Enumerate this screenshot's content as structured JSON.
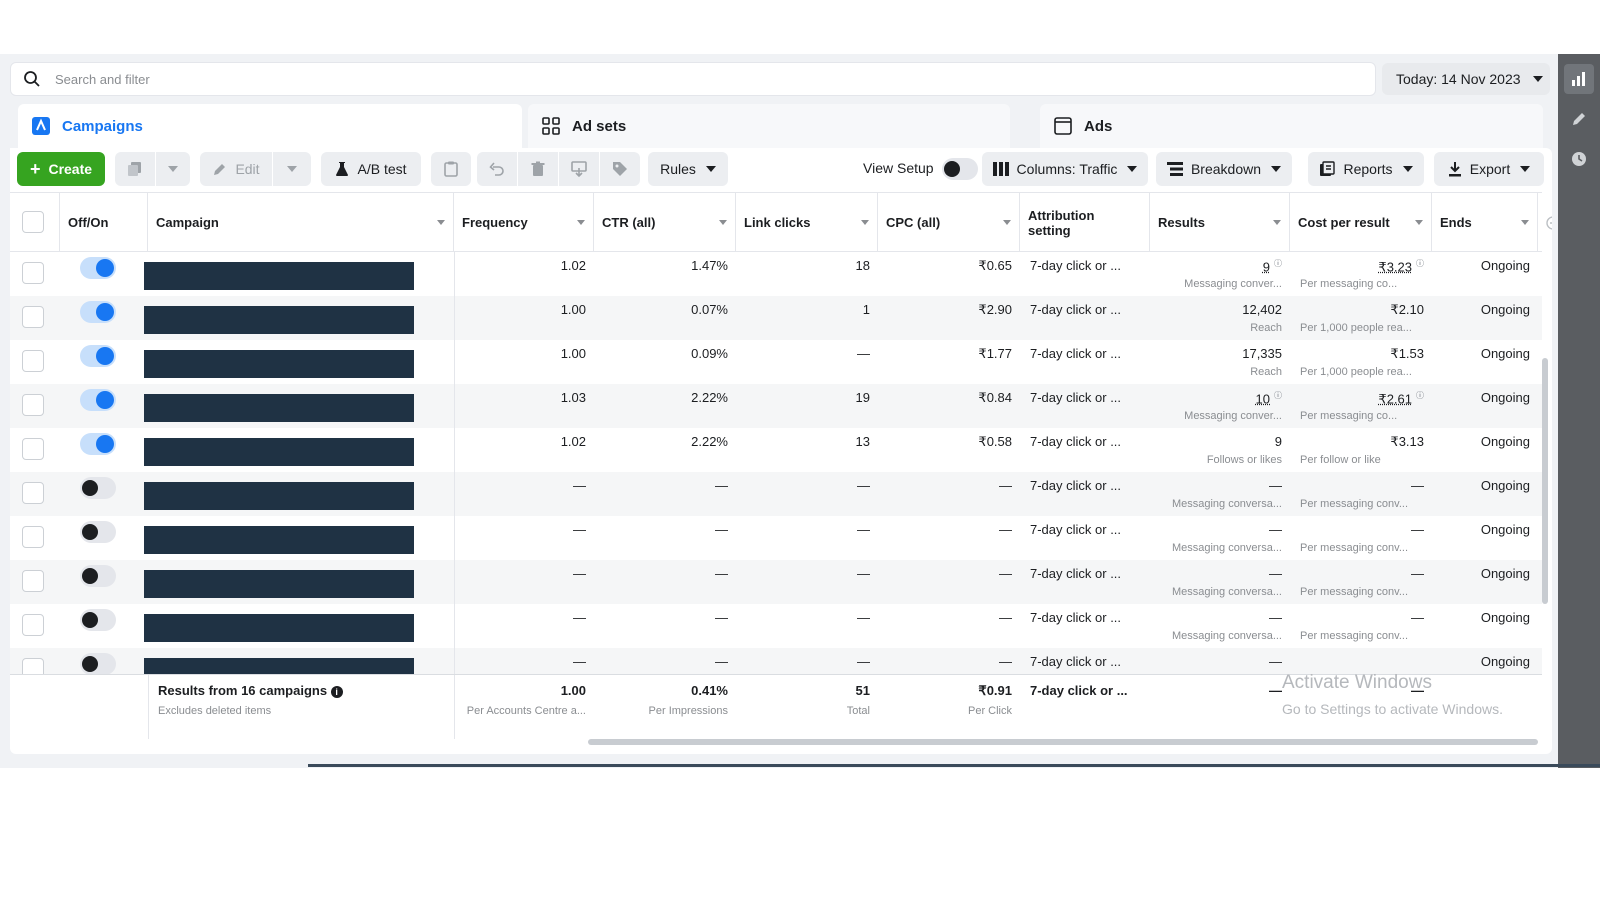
{
  "search": {
    "placeholder": "Search and filter"
  },
  "date_picker": {
    "label": "Today: 14 Nov 2023"
  },
  "tabs": [
    {
      "label": "Campaigns",
      "icon": "campaign-icon"
    },
    {
      "label": "Ad sets",
      "icon": "grid-icon"
    },
    {
      "label": "Ads",
      "icon": "ad-icon"
    }
  ],
  "toolbar": {
    "create_label": "Create",
    "edit_label": "Edit",
    "ab_test_label": "A/B test",
    "rules_label": "Rules",
    "view_setup_label": "View Setup",
    "columns_label": "Columns: Traffic",
    "breakdown_label": "Breakdown",
    "reports_label": "Reports",
    "export_label": "Export"
  },
  "columns": {
    "off_on": "Off/On",
    "campaign": "Campaign",
    "frequency": "Frequency",
    "ctr": "CTR (all)",
    "link_clicks": "Link clicks",
    "cpc": "CPC (all)",
    "attribution_line1": "Attribution",
    "attribution_line2": "setting",
    "results": "Results",
    "cost_per_result": "Cost per result",
    "ends": "Ends"
  },
  "rows": [
    {
      "on": true,
      "frequency": "1.02",
      "ctr": "1.47%",
      "link_clicks": "18",
      "cpc": "₹0.65",
      "attribution": "7-day click or ...",
      "results": "9",
      "results_sub": "Messaging conver...",
      "cost": "₹3.23",
      "cost_sub": "Per messaging co...",
      "ends": "Ongoing"
    },
    {
      "on": true,
      "frequency": "1.00",
      "ctr": "0.07%",
      "link_clicks": "1",
      "cpc": "₹2.90",
      "attribution": "7-day click or ...",
      "results": "12,402",
      "results_sub": "Reach",
      "cost": "₹2.10",
      "cost_sub": "Per 1,000 people rea...",
      "ends": "Ongoing"
    },
    {
      "on": true,
      "frequency": "1.00",
      "ctr": "0.09%",
      "link_clicks": "—",
      "cpc": "₹1.77",
      "attribution": "7-day click or ...",
      "results": "17,335",
      "results_sub": "Reach",
      "cost": "₹1.53",
      "cost_sub": "Per 1,000 people rea...",
      "ends": "Ongoing"
    },
    {
      "on": true,
      "frequency": "1.03",
      "ctr": "2.22%",
      "link_clicks": "19",
      "cpc": "₹0.84",
      "attribution": "7-day click or ...",
      "results": "10",
      "results_sub": "Messaging conver...",
      "cost": "₹2.61",
      "cost_sub": "Per messaging co...",
      "ends": "Ongoing"
    },
    {
      "on": true,
      "frequency": "1.02",
      "ctr": "2.22%",
      "link_clicks": "13",
      "cpc": "₹0.58",
      "attribution": "7-day click or ...",
      "results": "9",
      "results_sub": "Follows or likes",
      "cost": "₹3.13",
      "cost_sub": "Per follow or like",
      "ends": "Ongoing"
    },
    {
      "on": false,
      "frequency": "—",
      "ctr": "—",
      "link_clicks": "—",
      "cpc": "—",
      "attribution": "7-day click or ...",
      "results": "—",
      "results_sub": "Messaging conversa...",
      "cost": "—",
      "cost_sub": "Per messaging conv...",
      "ends": "Ongoing"
    },
    {
      "on": false,
      "frequency": "—",
      "ctr": "—",
      "link_clicks": "—",
      "cpc": "—",
      "attribution": "7-day click or ...",
      "results": "—",
      "results_sub": "Messaging conversa...",
      "cost": "—",
      "cost_sub": "Per messaging conv...",
      "ends": "Ongoing"
    },
    {
      "on": false,
      "frequency": "—",
      "ctr": "—",
      "link_clicks": "—",
      "cpc": "—",
      "attribution": "7-day click or ...",
      "results": "—",
      "results_sub": "Messaging conversa...",
      "cost": "—",
      "cost_sub": "Per messaging conv...",
      "ends": "Ongoing"
    },
    {
      "on": false,
      "frequency": "—",
      "ctr": "—",
      "link_clicks": "—",
      "cpc": "—",
      "attribution": "7-day click or ...",
      "results": "—",
      "results_sub": "Messaging conversa...",
      "cost": "—",
      "cost_sub": "Per messaging conv...",
      "ends": "Ongoing"
    },
    {
      "on": false,
      "frequency": "—",
      "ctr": "—",
      "link_clicks": "—",
      "cpc": "—",
      "attribution": "7-day click or ...",
      "results": "—",
      "results_sub": "",
      "cost": "",
      "cost_sub": "",
      "ends": "Ongoing"
    }
  ],
  "totals": {
    "label": "Results from 16 campaigns",
    "sublabel": "Excludes deleted items",
    "frequency": "1.00",
    "frequency_sub": "Per Accounts Centre a...",
    "ctr": "0.41%",
    "ctr_sub": "Per Impressions",
    "link_clicks": "51",
    "link_clicks_sub": "Total",
    "cpc": "₹0.91",
    "cpc_sub": "Per Click",
    "attribution": "7-day click or ...",
    "results": "—",
    "cost": "—"
  },
  "watermark": {
    "line1": "Activate Windows",
    "line2": "Go to Settings to activate Windows."
  },
  "colors": {
    "accent": "#1877f2",
    "create_green": "#36a420",
    "rail": "#5a5d61",
    "redaction": "#1f3244"
  }
}
